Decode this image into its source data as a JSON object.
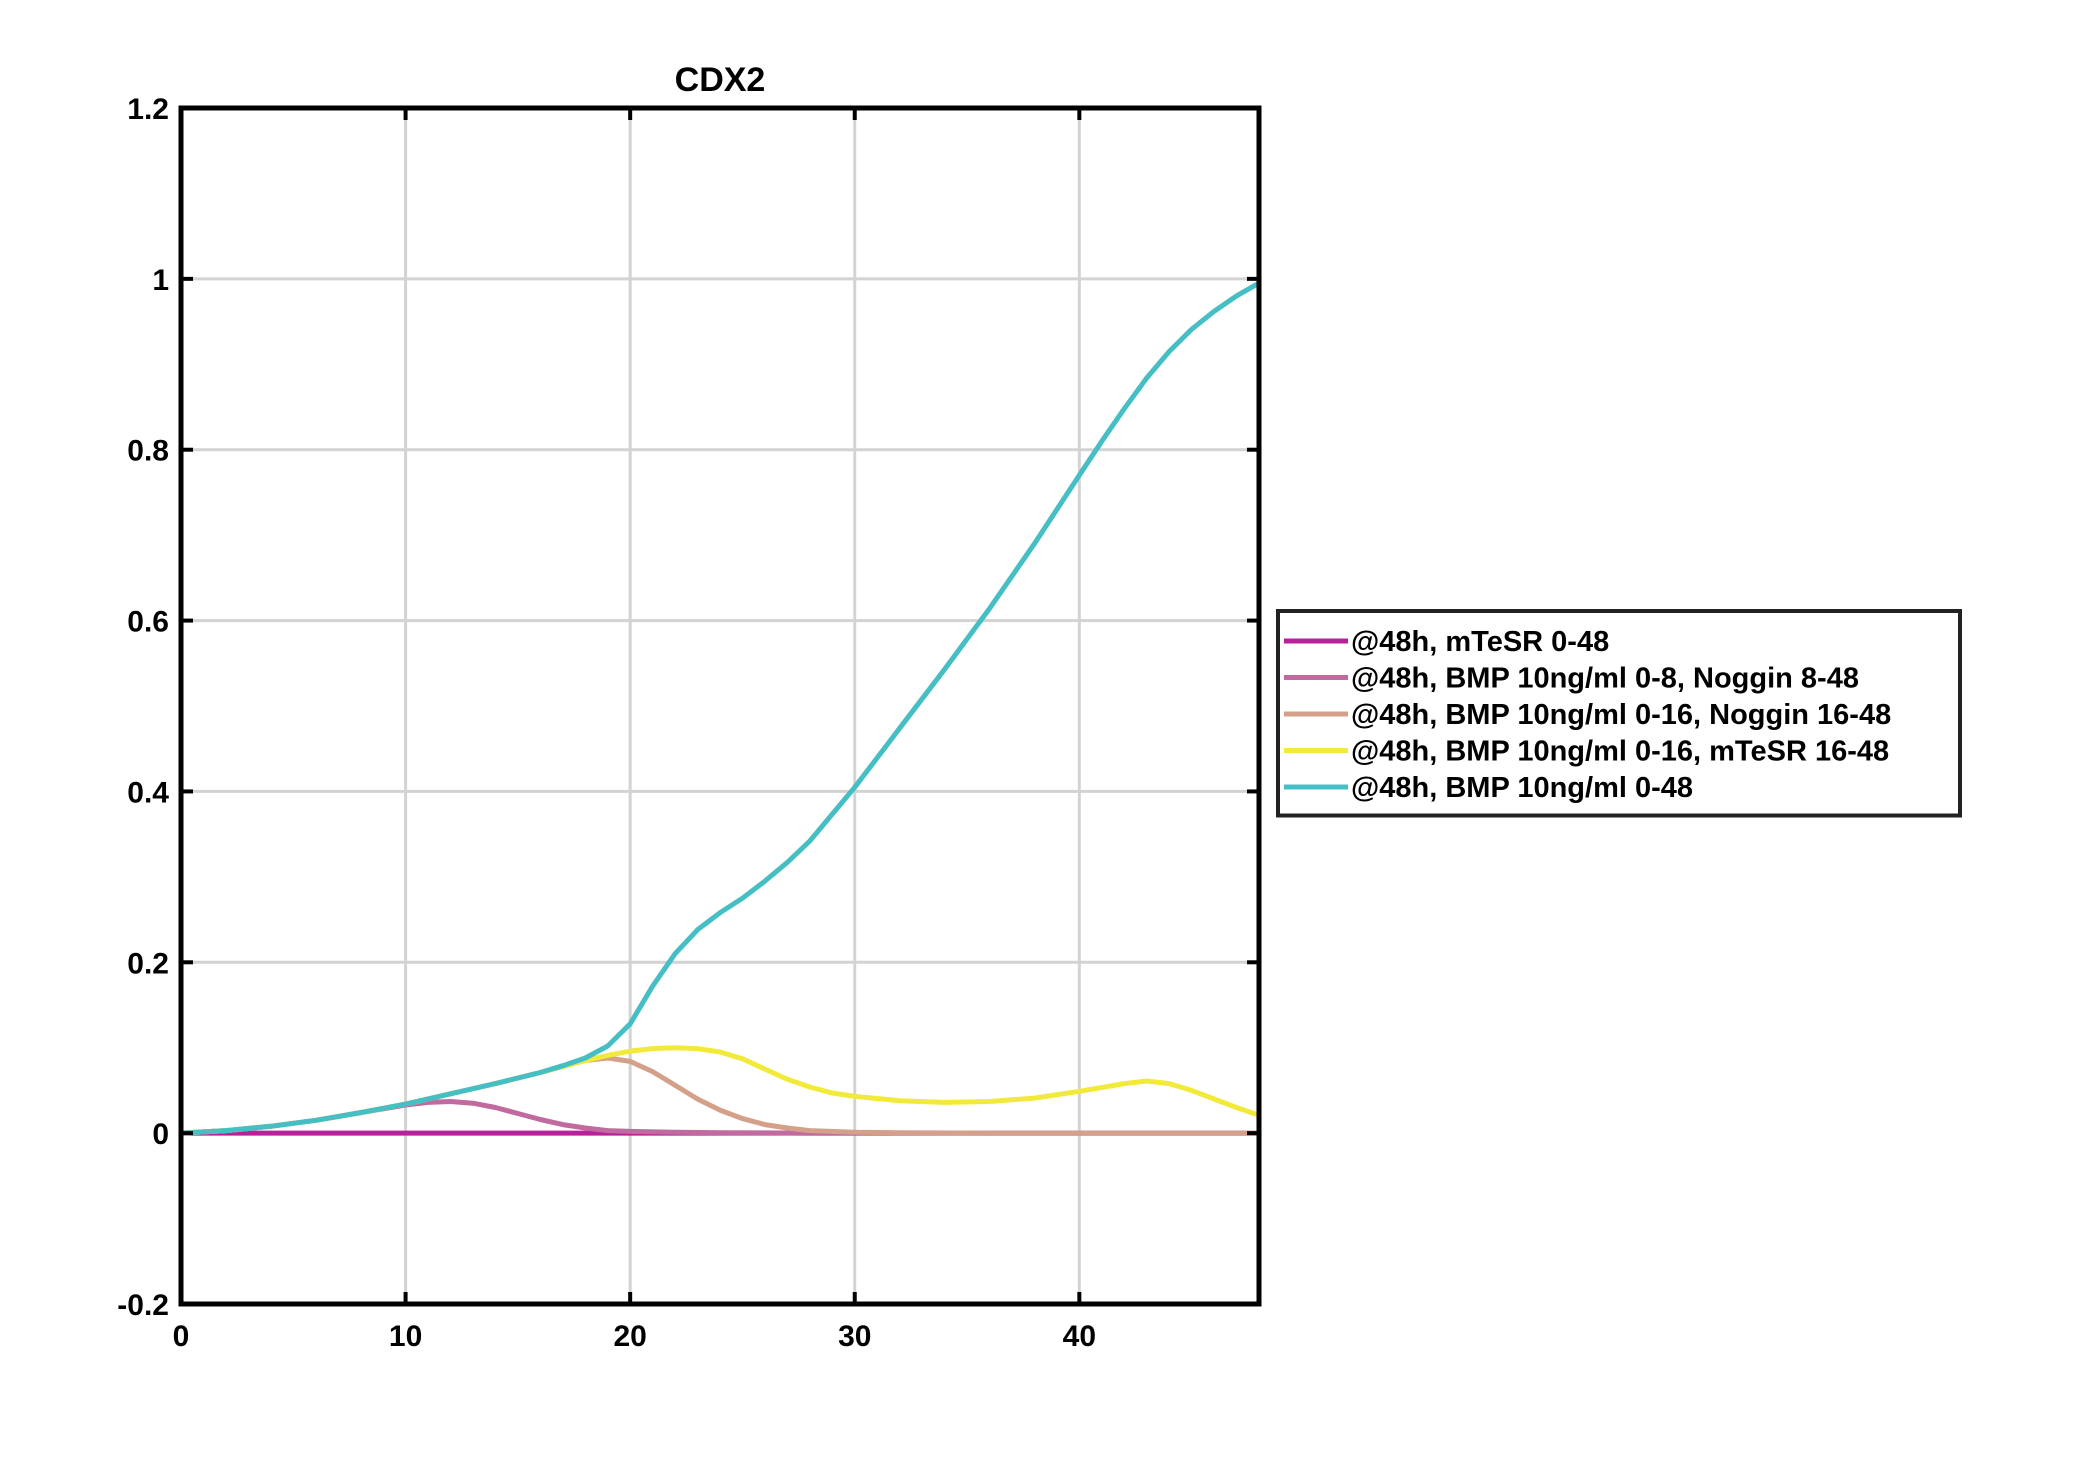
{
  "chart_data": {
    "type": "line",
    "title": "CDX2",
    "xlabel": "",
    "ylabel": "",
    "xlim": [
      0,
      48
    ],
    "ylim": [
      -0.2,
      1.2
    ],
    "xticks": [
      0,
      10,
      20,
      30,
      40
    ],
    "xtick_labels": [
      "0",
      "10",
      "20",
      "30",
      "40"
    ],
    "yticks": [
      -0.2,
      0,
      0.2,
      0.4,
      0.6,
      0.8,
      1,
      1.2
    ],
    "ytick_labels": [
      "-0.2",
      "0",
      "0.2",
      "0.4",
      "0.6",
      "0.8",
      "1",
      "1.2"
    ],
    "grid": true,
    "legend_placement": "outside-right",
    "series": [
      {
        "name": "@48h, mTeSR 0-48",
        "color": "#b8219a",
        "x": [
          0,
          48
        ],
        "y": [
          0,
          0
        ]
      },
      {
        "name": "@48h, BMP 10ng/ml 0-8, Noggin 8-48",
        "color": "#c06aa0",
        "x": [
          0,
          2,
          4,
          6,
          8,
          10,
          11,
          12,
          13,
          14,
          15,
          16,
          17,
          18,
          19,
          20,
          22,
          24,
          28,
          32,
          40,
          48
        ],
        "y": [
          0,
          0.003,
          0.008,
          0.015,
          0.024,
          0.033,
          0.036,
          0.037,
          0.035,
          0.03,
          0.023,
          0.016,
          0.01,
          0.006,
          0.003,
          0.002,
          0.001,
          0.0005,
          0,
          0,
          0,
          0
        ]
      },
      {
        "name": "@48h, BMP 10ng/ml 0-16, Noggin 16-48",
        "color": "#d4a08a",
        "x": [
          0,
          2,
          4,
          6,
          8,
          10,
          12,
          14,
          16,
          17,
          18,
          19,
          20,
          21,
          22,
          23,
          24,
          25,
          26,
          27,
          28,
          30,
          32,
          36,
          40,
          48
        ],
        "y": [
          0,
          0.003,
          0.008,
          0.015,
          0.024,
          0.034,
          0.046,
          0.058,
          0.071,
          0.078,
          0.085,
          0.088,
          0.084,
          0.072,
          0.056,
          0.04,
          0.027,
          0.017,
          0.01,
          0.006,
          0.003,
          0.001,
          0.0005,
          0,
          0,
          0
        ]
      },
      {
        "name": "@48h, BMP 10ng/ml 0-16, mTeSR 16-48",
        "color": "#f2ea3a",
        "x": [
          0,
          2,
          4,
          6,
          8,
          10,
          12,
          14,
          16,
          17,
          18,
          19,
          20,
          21,
          22,
          23,
          24,
          25,
          26,
          27,
          28,
          29,
          30,
          32,
          34,
          36,
          38,
          40,
          42,
          43,
          44,
          45,
          46,
          47,
          48
        ],
        "y": [
          0,
          0.003,
          0.008,
          0.015,
          0.024,
          0.034,
          0.046,
          0.058,
          0.071,
          0.078,
          0.085,
          0.091,
          0.096,
          0.099,
          0.1,
          0.099,
          0.095,
          0.087,
          0.075,
          0.063,
          0.054,
          0.047,
          0.043,
          0.038,
          0.036,
          0.037,
          0.041,
          0.049,
          0.058,
          0.061,
          0.058,
          0.05,
          0.04,
          0.03,
          0.021
        ]
      },
      {
        "name": "@48h, BMP 10ng/ml 0-48",
        "color": "#45bec4",
        "x": [
          0,
          2,
          4,
          6,
          8,
          10,
          12,
          14,
          16,
          17,
          18,
          19,
          20,
          21,
          22,
          23,
          24,
          25,
          26,
          27,
          28,
          30,
          32,
          34,
          36,
          38,
          40,
          41,
          42,
          43,
          44,
          45,
          46,
          47,
          48
        ],
        "y": [
          0,
          0.003,
          0.008,
          0.015,
          0.024,
          0.034,
          0.046,
          0.058,
          0.071,
          0.079,
          0.088,
          0.102,
          0.128,
          0.172,
          0.21,
          0.238,
          0.258,
          0.275,
          0.295,
          0.317,
          0.342,
          0.405,
          0.474,
          0.543,
          0.614,
          0.69,
          0.77,
          0.81,
          0.848,
          0.884,
          0.915,
          0.941,
          0.962,
          0.98,
          0.995
        ]
      }
    ]
  }
}
